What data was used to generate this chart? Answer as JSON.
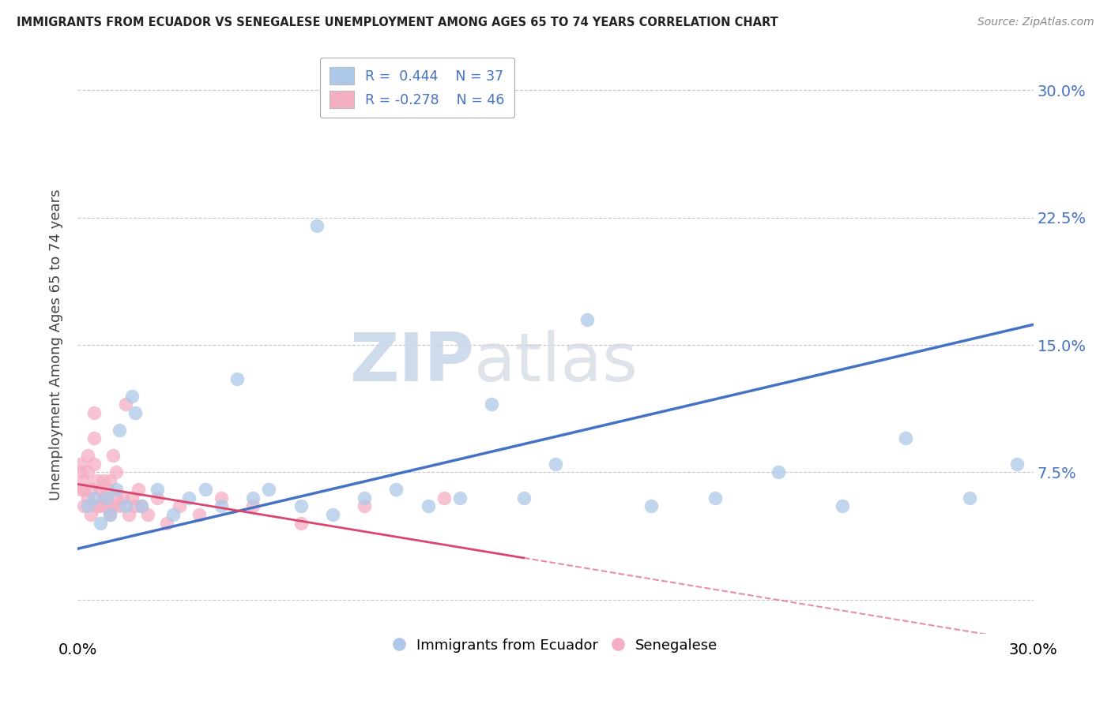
{
  "title": "IMMIGRANTS FROM ECUADOR VS SENEGALESE UNEMPLOYMENT AMONG AGES 65 TO 74 YEARS CORRELATION CHART",
  "source": "Source: ZipAtlas.com",
  "ylabel": "Unemployment Among Ages 65 to 74 years",
  "xlim": [
    0.0,
    0.3
  ],
  "ylim": [
    -0.02,
    0.32
  ],
  "yticks": [
    0.0,
    0.075,
    0.15,
    0.225,
    0.3
  ],
  "ytick_labels": [
    "",
    "7.5%",
    "15.0%",
    "22.5%",
    "30.0%"
  ],
  "legend_label1": "Immigrants from Ecuador",
  "legend_label2": "Senegalese",
  "blue_color": "#adc8e8",
  "pink_color": "#f5afc3",
  "line_blue": "#4472c4",
  "line_pink": "#d9456e",
  "watermark_zip": "ZIP",
  "watermark_atlas": "atlas",
  "blue_scatter_x": [
    0.003,
    0.005,
    0.007,
    0.009,
    0.01,
    0.012,
    0.013,
    0.015,
    0.017,
    0.018,
    0.02,
    0.025,
    0.03,
    0.035,
    0.04,
    0.045,
    0.05,
    0.055,
    0.06,
    0.07,
    0.075,
    0.08,
    0.09,
    0.1,
    0.11,
    0.12,
    0.13,
    0.14,
    0.15,
    0.16,
    0.18,
    0.2,
    0.22,
    0.24,
    0.26,
    0.28,
    0.295
  ],
  "blue_scatter_y": [
    0.055,
    0.06,
    0.045,
    0.06,
    0.05,
    0.065,
    0.1,
    0.055,
    0.12,
    0.11,
    0.055,
    0.065,
    0.05,
    0.06,
    0.065,
    0.055,
    0.13,
    0.06,
    0.065,
    0.055,
    0.22,
    0.05,
    0.06,
    0.065,
    0.055,
    0.06,
    0.115,
    0.06,
    0.08,
    0.165,
    0.055,
    0.06,
    0.075,
    0.055,
    0.095,
    0.06,
    0.08
  ],
  "pink_scatter_x": [
    0.001,
    0.001,
    0.001,
    0.002,
    0.002,
    0.002,
    0.003,
    0.003,
    0.003,
    0.004,
    0.004,
    0.005,
    0.005,
    0.005,
    0.006,
    0.006,
    0.007,
    0.007,
    0.008,
    0.008,
    0.009,
    0.009,
    0.01,
    0.01,
    0.011,
    0.011,
    0.012,
    0.012,
    0.013,
    0.014,
    0.015,
    0.016,
    0.017,
    0.018,
    0.019,
    0.02,
    0.022,
    0.025,
    0.028,
    0.032,
    0.038,
    0.045,
    0.055,
    0.07,
    0.09,
    0.115
  ],
  "pink_scatter_y": [
    0.065,
    0.075,
    0.08,
    0.055,
    0.065,
    0.07,
    0.06,
    0.075,
    0.085,
    0.05,
    0.065,
    0.08,
    0.095,
    0.11,
    0.055,
    0.07,
    0.055,
    0.065,
    0.06,
    0.07,
    0.055,
    0.065,
    0.05,
    0.07,
    0.055,
    0.085,
    0.06,
    0.075,
    0.055,
    0.06,
    0.115,
    0.05,
    0.06,
    0.055,
    0.065,
    0.055,
    0.05,
    0.06,
    0.045,
    0.055,
    0.05,
    0.06,
    0.055,
    0.045,
    0.055,
    0.06
  ],
  "blue_line_x0": 0.0,
  "blue_line_y0": 0.03,
  "blue_line_x1": 0.3,
  "blue_line_y1": 0.162,
  "pink_line_x0": 0.0,
  "pink_line_y0": 0.068,
  "pink_line_x1": 0.3,
  "pink_line_y1": -0.025
}
